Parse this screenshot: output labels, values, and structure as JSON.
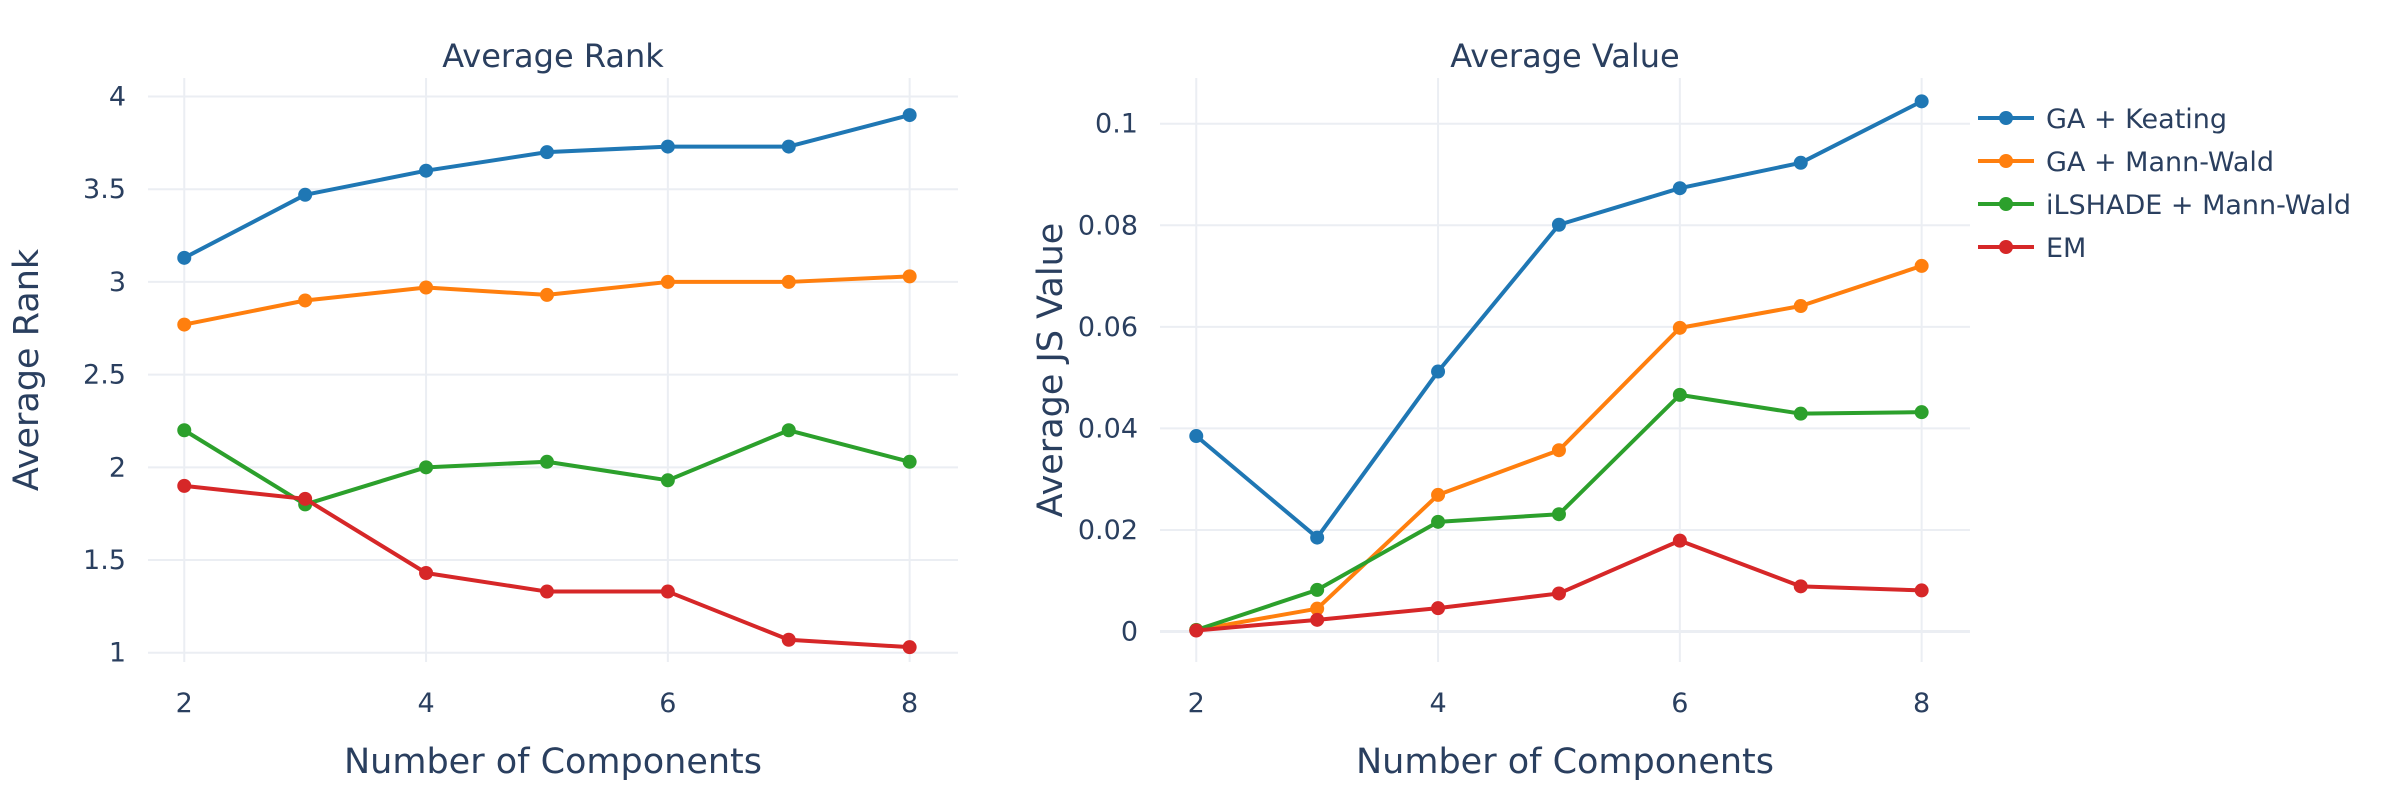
{
  "chart_data": [
    {
      "type": "line",
      "title": "Average Rank",
      "xlabel": "Number of Components",
      "ylabel": "Average Rank",
      "x": [
        2,
        3,
        4,
        5,
        6,
        7,
        8
      ],
      "xlim": [
        1.7,
        8.4
      ],
      "ylim": [
        0.95,
        4.1
      ],
      "x_ticks": [
        2,
        4,
        6,
        8
      ],
      "x_tick_labels": [
        "2",
        "4",
        "6",
        "8"
      ],
      "y_ticks": [
        1,
        1.5,
        2,
        2.5,
        3,
        3.5,
        4
      ],
      "y_tick_labels": [
        "1",
        "1.5",
        "2",
        "2.5",
        "3",
        "3.5",
        "4"
      ],
      "grid": true,
      "series": [
        {
          "name": "GA + Keating",
          "color": "#1f77b4",
          "values": [
            3.13,
            3.47,
            3.6,
            3.7,
            3.73,
            3.73,
            3.9
          ]
        },
        {
          "name": "GA + Mann-Wald",
          "color": "#ff7f0e",
          "values": [
            2.77,
            2.9,
            2.97,
            2.93,
            3.0,
            3.0,
            3.03
          ]
        },
        {
          "name": "iLSHADE + Mann-Wald",
          "color": "#2ca02c",
          "values": [
            2.2,
            1.8,
            2.0,
            2.03,
            1.93,
            2.2,
            2.03
          ]
        },
        {
          "name": "EM",
          "color": "#d62728",
          "values": [
            1.9,
            1.83,
            1.43,
            1.33,
            1.33,
            1.07,
            1.03
          ]
        }
      ]
    },
    {
      "type": "line",
      "title": "Average Value",
      "xlabel": "Number of Components",
      "ylabel": "Average JS Value",
      "x": [
        2,
        3,
        4,
        5,
        6,
        7,
        8
      ],
      "xlim": [
        1.7,
        8.4
      ],
      "ylim": [
        -0.006,
        0.109
      ],
      "x_ticks": [
        2,
        4,
        6,
        8
      ],
      "x_tick_labels": [
        "2",
        "4",
        "6",
        "8"
      ],
      "y_ticks": [
        0,
        0.02,
        0.04,
        0.06,
        0.08,
        0.1
      ],
      "y_tick_labels": [
        "0",
        "0.02",
        "0.04",
        "0.06",
        "0.08",
        "0.1"
      ],
      "grid": true,
      "legend_position": "top-right outside",
      "series": [
        {
          "name": "GA + Keating",
          "color": "#1f77b4",
          "values": [
            0.0385,
            0.0185,
            0.0512,
            0.0801,
            0.0873,
            0.0923,
            0.1044
          ]
        },
        {
          "name": "GA + Mann-Wald",
          "color": "#ff7f0e",
          "values": [
            0.0003,
            0.0045,
            0.0269,
            0.0357,
            0.0598,
            0.0641,
            0.072
          ]
        },
        {
          "name": "iLSHADE + Mann-Wald",
          "color": "#2ca02c",
          "values": [
            0.0003,
            0.0082,
            0.0216,
            0.0231,
            0.0466,
            0.0429,
            0.0432
          ]
        },
        {
          "name": "EM",
          "color": "#d62728",
          "values": [
            0.0002,
            0.0023,
            0.0046,
            0.0075,
            0.0179,
            0.0089,
            0.0081
          ]
        }
      ]
    }
  ],
  "legend": [
    {
      "name": "GA + Keating",
      "color": "#1f77b4"
    },
    {
      "name": "GA + Mann-Wald",
      "color": "#ff7f0e"
    },
    {
      "name": "iLSHADE + Mann-Wald",
      "color": "#2ca02c"
    },
    {
      "name": "EM",
      "color": "#d62728"
    }
  ]
}
